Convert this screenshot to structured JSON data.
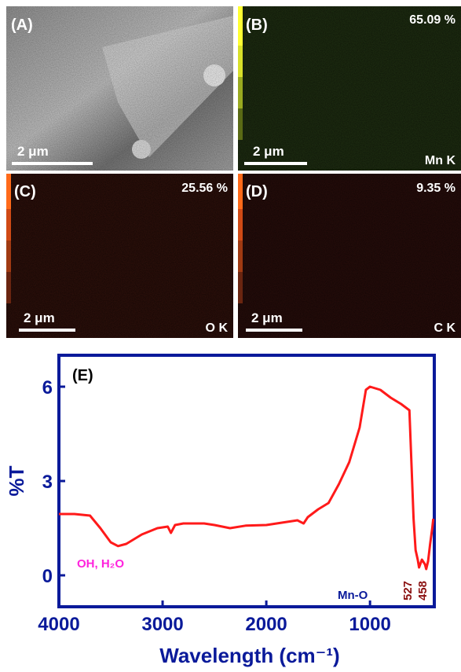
{
  "panels": [
    {
      "label": "(A)",
      "scale": "2 μm"
    },
    {
      "label": "(B)",
      "scale": "2 μm",
      "percent": "65.09 %",
      "element": "Mn K"
    },
    {
      "label": "(C)",
      "scale": "2 μm",
      "percent": "25.56 %",
      "element": "O K"
    },
    {
      "label": "(D)",
      "scale": "2 μm",
      "percent": "9.35 %",
      "element": "C K"
    }
  ],
  "chart_data": {
    "type": "line",
    "panel_label": "(E)",
    "xlabel": "Wavelength (cm⁻¹)",
    "ylabel": "%T",
    "xlim": [
      4000,
      380
    ],
    "ylim": [
      -1,
      7
    ],
    "xticks": [
      4000,
      3000,
      2000,
      1000
    ],
    "yticks": [
      0,
      3,
      6
    ],
    "annotations": [
      "OH, H₂O",
      "Mn-O",
      "527",
      "458"
    ],
    "series": [
      {
        "color": "#ff1a1a",
        "x": [
          4000,
          3850,
          3700,
          3600,
          3500,
          3430,
          3350,
          3200,
          3050,
          2950,
          2920,
          2880,
          2800,
          2600,
          2500,
          2350,
          2200,
          2000,
          1800,
          1700,
          1640,
          1600,
          1500,
          1400,
          1300,
          1200,
          1100,
          1040,
          1000,
          900,
          800,
          700,
          620,
          600,
          580,
          560,
          540,
          527,
          500,
          470,
          458,
          440,
          420,
          400,
          390
        ],
        "values": [
          1.95,
          1.95,
          1.9,
          1.5,
          1.05,
          0.93,
          1.0,
          1.3,
          1.5,
          1.55,
          1.35,
          1.6,
          1.65,
          1.65,
          1.6,
          1.5,
          1.58,
          1.6,
          1.7,
          1.75,
          1.65,
          1.85,
          2.1,
          2.3,
          2.9,
          3.6,
          4.7,
          5.9,
          6.0,
          5.9,
          5.65,
          5.45,
          5.25,
          3.5,
          1.8,
          0.8,
          0.5,
          0.25,
          0.5,
          0.35,
          0.2,
          0.45,
          1.0,
          1.5,
          1.8
        ]
      }
    ]
  }
}
